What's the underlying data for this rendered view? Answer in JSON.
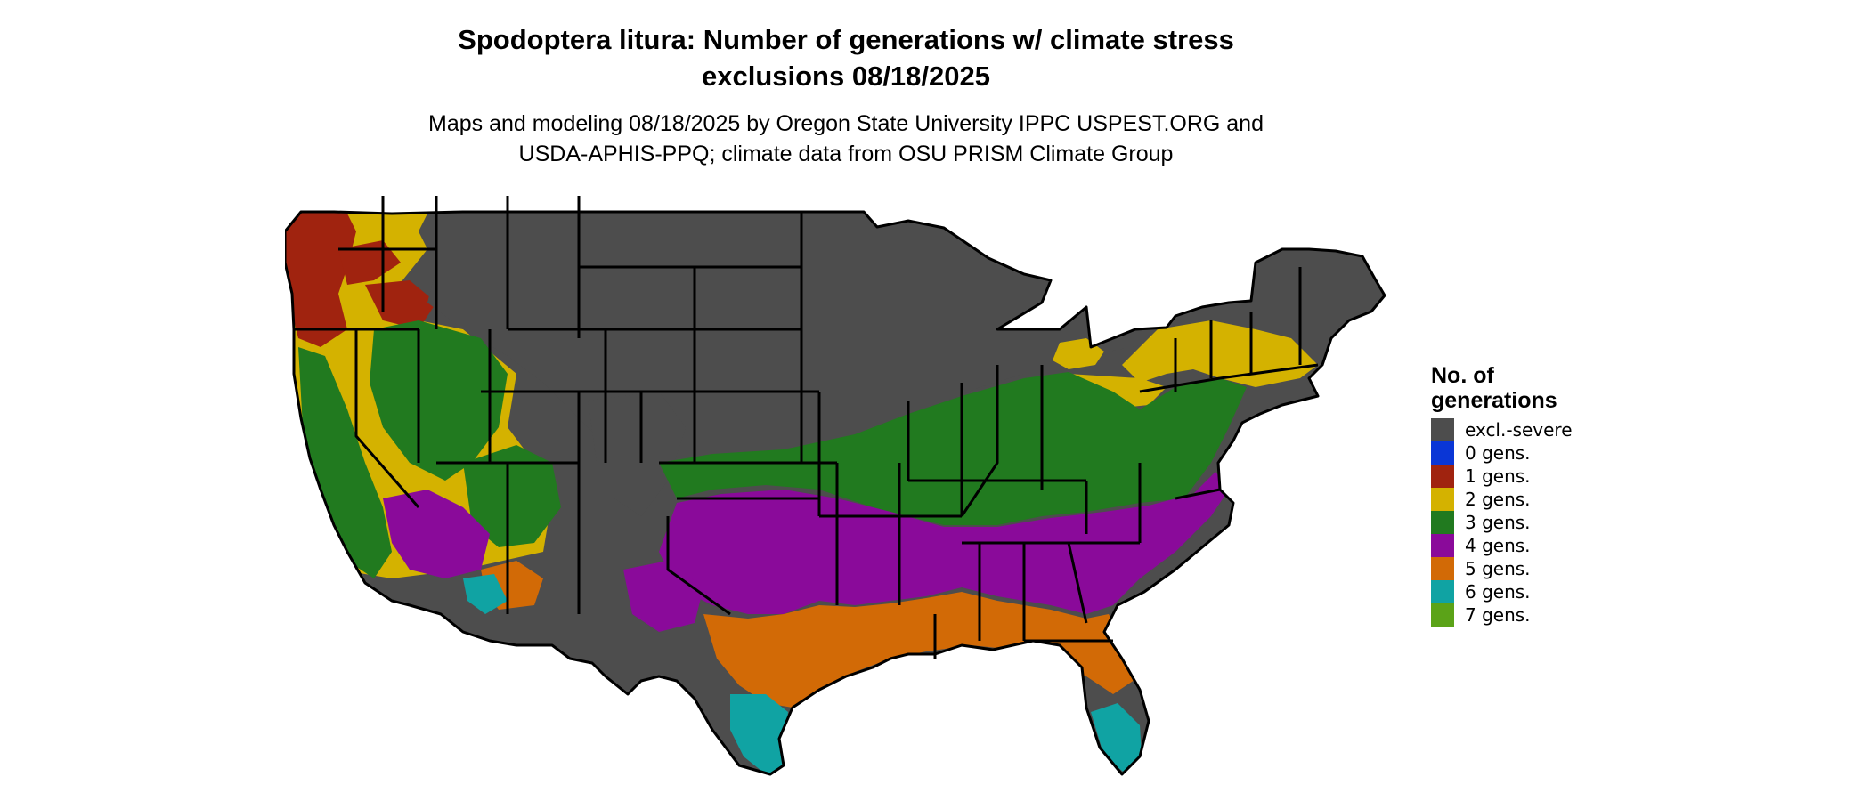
{
  "title": {
    "line1": "Spodoptera litura: Number of generations w/ climate stress",
    "line2": "exclusions 08/18/2025"
  },
  "subtitle": {
    "line1": "Maps and modeling 08/18/2025 by Oregon State University IPPC USPEST.ORG and",
    "line2": "USDA-APHIS-PPQ; climate data from OSU PRISM Climate Group"
  },
  "legend": {
    "title_line1": "No. of",
    "title_line2": "generations",
    "items": [
      {
        "label": "excl.-severe",
        "color": "#4d4d4d"
      },
      {
        "label": "0 gens.",
        "color": "#0a36d6"
      },
      {
        "label": "1 gens.",
        "color": "#a0230f"
      },
      {
        "label": "2 gens.",
        "color": "#d4b200"
      },
      {
        "label": "3 gens.",
        "color": "#217a1f"
      },
      {
        "label": "4 gens.",
        "color": "#8a0a9a"
      },
      {
        "label": "5 gens.",
        "color": "#d26a06"
      },
      {
        "label": "6 gens.",
        "color": "#10a3a3"
      },
      {
        "label": "7 gens.",
        "color": "#5ba318"
      }
    ]
  },
  "map": {
    "colors": {
      "excl": "#4d4d4d",
      "g1": "#a0230f",
      "g2": "#d4b200",
      "g3": "#217a1f",
      "g3dark": "#0b6a0b",
      "g4": "#8a0a9a",
      "g5": "#d26a06",
      "g6": "#10a3a3",
      "g7": "#5ba318",
      "border": "#000000"
    }
  }
}
